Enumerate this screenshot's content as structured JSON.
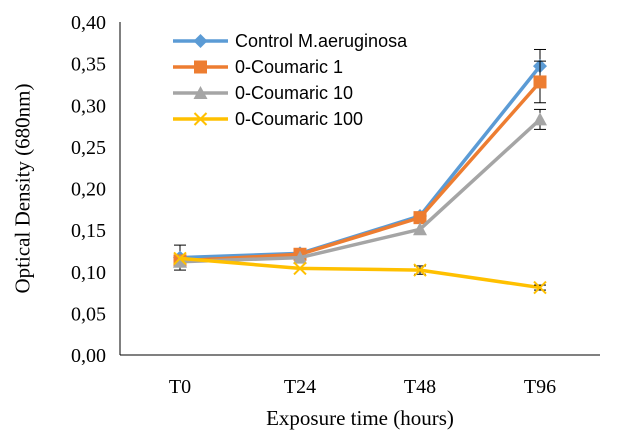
{
  "chart_data": {
    "type": "line",
    "title": "",
    "xlabel": "Exposure time (hours)",
    "ylabel": "Optical Density (680nm)",
    "categories": [
      "T0",
      "T24",
      "T48",
      "T96"
    ],
    "ylim": [
      0,
      0.4
    ],
    "y_ticks": [
      "0,00",
      "0,05",
      "0,10",
      "0,15",
      "0,20",
      "0,25",
      "0,30",
      "0,35",
      "0,40"
    ],
    "grid": false,
    "legend_position": "top-left",
    "series": [
      {
        "name": "Control M.aeruginosa",
        "color": "#5b9bd5",
        "marker": "diamond",
        "values": [
          0.117,
          0.122,
          0.167,
          0.347
        ],
        "errors": [
          0.015,
          0.0,
          0.0,
          0.02
        ]
      },
      {
        "name": "0-Coumaric 1",
        "color": "#ed7d31",
        "marker": "square",
        "values": [
          0.113,
          0.121,
          0.165,
          0.328
        ],
        "errors": [
          0.0,
          0.0,
          0.0,
          0.025
        ]
      },
      {
        "name": "0-Coumaric 10",
        "color": "#a5a5a5",
        "marker": "triangle",
        "values": [
          0.112,
          0.117,
          0.151,
          0.283
        ],
        "errors": [
          0.0,
          0.0,
          0.0,
          0.012
        ]
      },
      {
        "name": "0-Coumaric 100",
        "color": "#ffc000",
        "marker": "x",
        "values": [
          0.116,
          0.104,
          0.102,
          0.081
        ],
        "errors": [
          0.0,
          0.0,
          0.005,
          0.003
        ]
      }
    ]
  }
}
